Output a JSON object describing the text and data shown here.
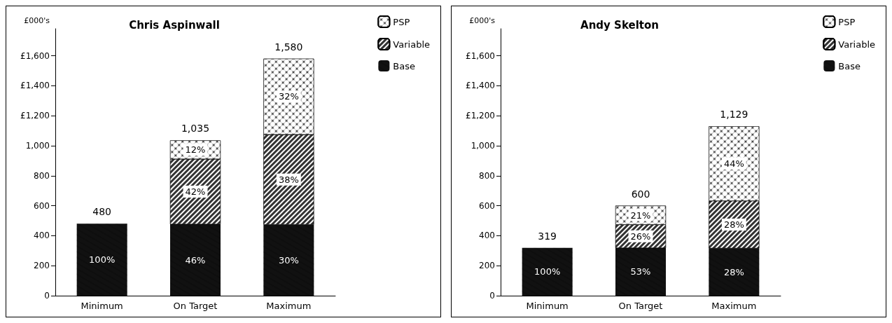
{
  "chart_data": [
    {
      "type": "bar",
      "title": "Chris Aspinwall",
      "ylabel": "£000's",
      "categories": [
        "Minimum",
        "On Target",
        "Maximum"
      ],
      "stacked": true,
      "legend": "top right",
      "grid": false,
      "ylim": [
        0,
        1780
      ],
      "yticks": [
        0,
        200,
        400,
        600,
        800,
        {
          "value": 1000,
          "label": "1,000"
        },
        {
          "value": 1200,
          "label": "£1,200"
        },
        {
          "value": 1400,
          "label": "£1,400"
        },
        {
          "value": 1600,
          "label": "£1,600"
        }
      ],
      "totals": [
        "480",
        "1,035",
        "1,580"
      ],
      "series": [
        {
          "name": "Base",
          "color": "#111111",
          "values": [
            480,
            476,
            474
          ]
        },
        {
          "name": "Variable",
          "color": "#333333",
          "values": [
            null,
            435,
            600
          ]
        },
        {
          "name": "PSP",
          "color": "#444444",
          "values": [
            null,
            124,
            506
          ]
        }
      ],
      "annotations": [
        "100%",
        "46%",
        "30%",
        "42%",
        "38%",
        "12%",
        "32%"
      ]
    },
    {
      "type": "bar",
      "title": "Andy Skelton",
      "ylabel": "£000's",
      "categories": [
        "Minimum",
        "On Target",
        "Maximum"
      ],
      "stacked": true,
      "legend": "top right",
      "grid": false,
      "ylim": [
        0,
        1780
      ],
      "yticks": [
        0,
        200,
        400,
        600,
        800,
        {
          "value": 1000,
          "label": "1,000"
        },
        {
          "value": 1200,
          "label": "£1,200"
        },
        {
          "value": 1400,
          "label": "£1,400"
        },
        {
          "value": 1600,
          "label": "£1,600"
        }
      ],
      "totals": [
        "319",
        "600",
        "1,129"
      ],
      "series": [
        {
          "name": "Base",
          "color": "#111111",
          "values": [
            319,
            318,
            316
          ]
        },
        {
          "name": "Variable",
          "color": "#333333",
          "values": [
            null,
            156,
            316
          ]
        },
        {
          "name": "PSP",
          "color": "#444444",
          "values": [
            null,
            126,
            497
          ]
        }
      ],
      "annotations": [
        "100%",
        "53%",
        "28%",
        "26%",
        "28%",
        "21%",
        "44%"
      ]
    }
  ]
}
